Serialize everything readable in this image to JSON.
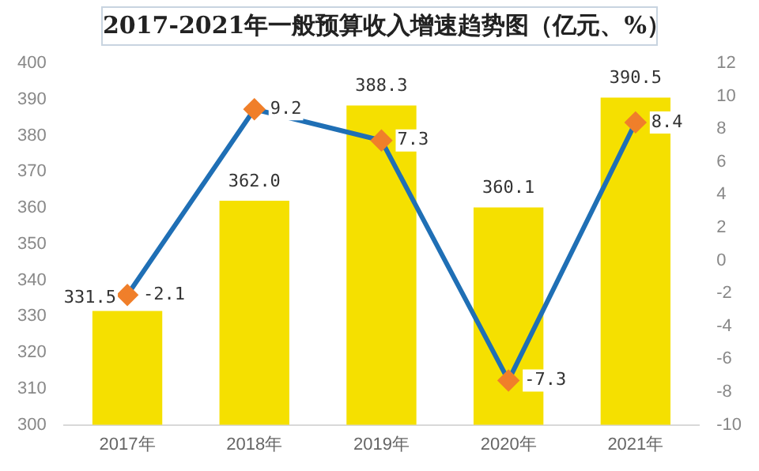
{
  "chart_data": {
    "type": "bar",
    "title": "2017-2021年一般预算收入增速趋势图（亿元、%）",
    "categories": [
      "2017年",
      "2018年",
      "2019年",
      "2020年",
      "2021年"
    ],
    "series": [
      {
        "color": "#f5e000",
        "values": [
          331.5,
          362.0,
          388.3,
          360.1,
          390.5
        ],
        "value_labels": [
          "331.5",
          "362.0",
          "388.3",
          "360.1",
          "390.5"
        ]
      },
      {
        "type": "line",
        "axis": "y2",
        "color": "#1f6fb5",
        "colors": [
          "#f07f2a",
          "#f07f2a",
          "#f07f2a",
          "#f07f2a",
          "#f07f2a"
        ],
        "marker": "diamond",
        "values": [
          -2.1,
          9.2,
          7.3,
          -7.3,
          8.4
        ],
        "value_labels": [
          "-2.1",
          "9.2",
          "7.3",
          "-7.3",
          "8.4"
        ]
      }
    ],
    "ylim": [
      300,
      400
    ],
    "yticks": [
      300,
      310,
      320,
      330,
      340,
      350,
      360,
      370,
      380,
      390,
      400
    ],
    "y2lim": [
      -10,
      12
    ],
    "y2ticks": [
      -10,
      -8,
      -6,
      -4,
      -2,
      0,
      2,
      4,
      6,
      8,
      10,
      12
    ],
    "grid": false,
    "legend": false
  }
}
